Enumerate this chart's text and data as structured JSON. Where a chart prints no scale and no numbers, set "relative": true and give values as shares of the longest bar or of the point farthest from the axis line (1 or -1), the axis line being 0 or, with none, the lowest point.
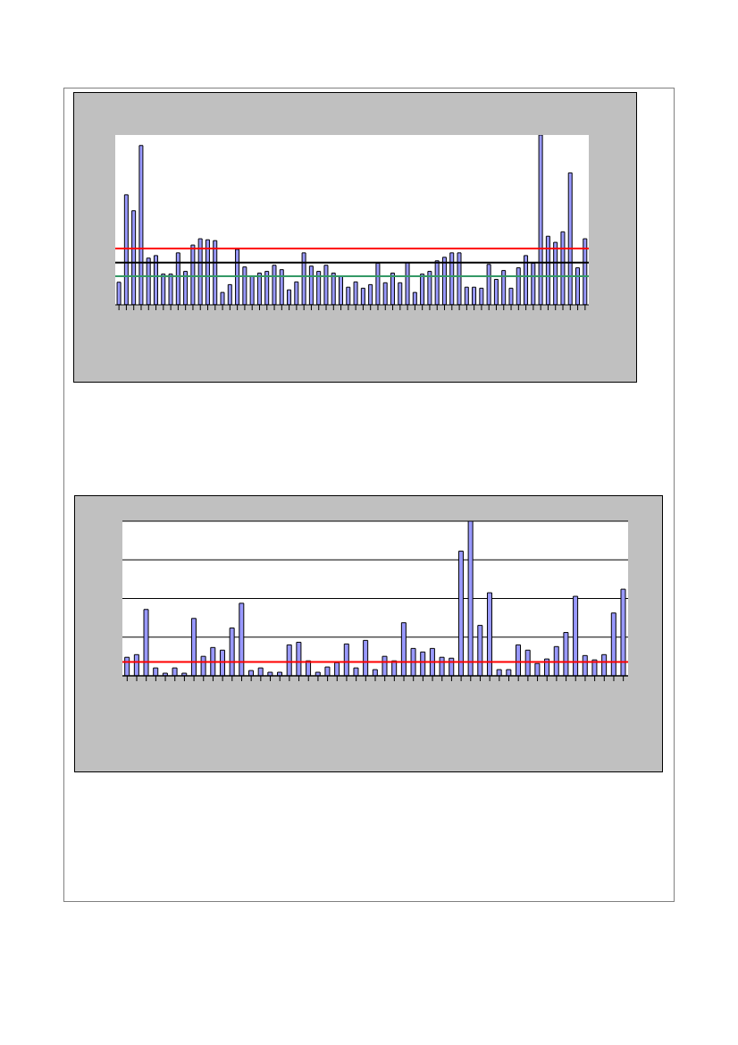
{
  "chart_data": [
    {
      "type": "bar",
      "relative": true,
      "grid": false,
      "categories": [
        null,
        null,
        null,
        null,
        null,
        null,
        null,
        null,
        null,
        null,
        null,
        null,
        null,
        null,
        null,
        null,
        null,
        null,
        null,
        null,
        null,
        null,
        null,
        null,
        null,
        null,
        null,
        null,
        null,
        null,
        null,
        null,
        null,
        null,
        null,
        null,
        null,
        null,
        null,
        null,
        null,
        null,
        null,
        null,
        null,
        null,
        null,
        null,
        null,
        null,
        null,
        null,
        null,
        null,
        null,
        null,
        null,
        null,
        null,
        null,
        null,
        null,
        null,
        null
      ],
      "series": [
        {
          "color": "#9999ff",
          "values": [
            0.133,
            0.648,
            0.554,
            0.938,
            0.275,
            0.29,
            0.181,
            0.181,
            0.306,
            0.197,
            0.352,
            0.389,
            0.383,
            0.378,
            0.073,
            0.119,
            0.326,
            0.223,
            0.166,
            0.187,
            0.197,
            0.233,
            0.207,
            0.088,
            0.135,
            0.306,
            0.228,
            0.197,
            0.233,
            0.187,
            0.166,
            0.104,
            0.135,
            0.098,
            0.119,
            0.245,
            0.13,
            0.187,
            0.13,
            0.249,
            0.073,
            0.181,
            0.197,
            0.259,
            0.28,
            0.306,
            0.306,
            0.104,
            0.104,
            0.098,
            0.238,
            0.15,
            0.202,
            0.098,
            0.218,
            0.29,
            0.245,
            1,
            0.404,
            0.368,
            0.43,
            0.777,
            0.218,
            0.389
          ]
        }
      ],
      "ref_lines": [
        {
          "axis": "y",
          "value": 0.332,
          "color": "#ff0000"
        },
        {
          "axis": "y",
          "value": 0.249,
          "color": "#000000"
        },
        {
          "axis": "y",
          "value": 0.168,
          "color": "#339966"
        }
      ]
    },
    {
      "type": "bar",
      "relative": true,
      "grid": "y",
      "categories": [
        null,
        null,
        null,
        null,
        null,
        null,
        null,
        null,
        null,
        null,
        null,
        null,
        null,
        null,
        null,
        null,
        null,
        null,
        null,
        null,
        null,
        null,
        null,
        null,
        null,
        null,
        null,
        null,
        null,
        null,
        null,
        null,
        null,
        null,
        null,
        null,
        null,
        null,
        null,
        null,
        null,
        null,
        null,
        null,
        null,
        null,
        null,
        null,
        null,
        null,
        null,
        null,
        null
      ],
      "series": [
        {
          "color": "#9999ff",
          "values": [
            0.12,
            0.137,
            0.429,
            0.051,
            0.017,
            0.051,
            0.017,
            0.371,
            0.126,
            0.183,
            0.166,
            0.309,
            0.469,
            0.034,
            0.051,
            0.023,
            0.023,
            0.2,
            0.217,
            0.097,
            0.023,
            0.057,
            0.086,
            0.206,
            0.051,
            0.229,
            0.04,
            0.126,
            0.097,
            0.343,
            0.177,
            0.154,
            0.177,
            0.12,
            0.114,
            0.806,
            1,
            0.326,
            0.537,
            0.04,
            0.04,
            0.2,
            0.166,
            0.08,
            0.109,
            0.189,
            0.28,
            0.514,
            0.131,
            0.103,
            0.137,
            0.406,
            0.56
          ]
        }
      ],
      "ref_lines": [
        {
          "axis": "y",
          "value": 0.09,
          "color": "#ff0000"
        }
      ]
    }
  ]
}
